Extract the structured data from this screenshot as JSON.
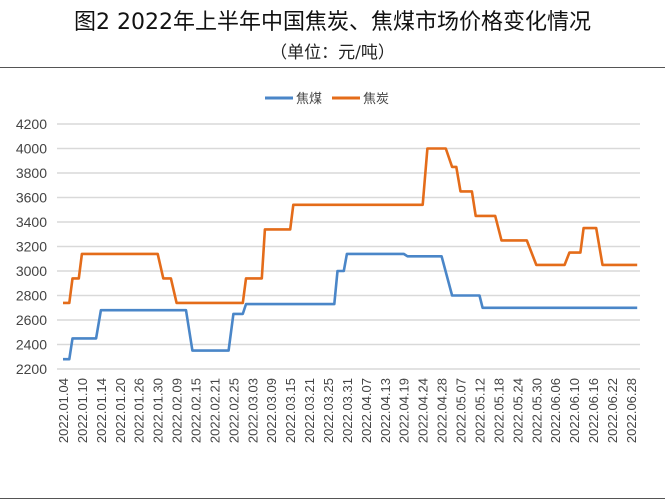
{
  "title": "图2 2022年上半年中国焦炭、焦煤市场价格变化情况",
  "subtitle": "（单位：元/吨）",
  "chart_data": {
    "type": "line",
    "title": "图2 2022年上半年中国焦炭、焦煤市场价格变化情况",
    "subtitle": "（单位：元/吨）",
    "xlabel": "",
    "ylabel": "",
    "ylim": [
      2200,
      4200
    ],
    "yticks": [
      2200,
      2400,
      2600,
      2800,
      3000,
      3200,
      3400,
      3600,
      3800,
      4000,
      4200
    ],
    "grid": true,
    "legend_position": "top-center",
    "xtick_labels": [
      "2022.01.04",
      "2022.01.10",
      "2022.01.14",
      "2022.01.20",
      "2022.01.26",
      "2022.01.30",
      "2022.02.09",
      "2022.02.15",
      "2022.02.21",
      "2022.02.25",
      "2022.03.03",
      "2022.03.09",
      "2022.03.15",
      "2022.03.21",
      "2022.03.25",
      "2022.03.31",
      "2022.04.07",
      "2022.04.13",
      "2022.04.19",
      "2022.04.24",
      "2022.04.28",
      "2022.05.07",
      "2022.05.12",
      "2022.05.18",
      "2022.05.24",
      "2022.05.30",
      "2022.06.06",
      "2022.06.10",
      "2022.06.16",
      "2022.06.22",
      "2022.06.28"
    ],
    "series": [
      {
        "name": "焦煤",
        "color": "#4a86c8",
        "points": [
          [
            "2022-01-04",
            2280
          ],
          [
            "2022-01-06",
            2280
          ],
          [
            "2022-01-07",
            2450
          ],
          [
            "2022-01-13",
            2450
          ],
          [
            "2022-01-14",
            2680
          ],
          [
            "2022-02-12",
            2680
          ],
          [
            "2022-02-14",
            2350
          ],
          [
            "2022-02-24",
            2350
          ],
          [
            "2022-02-25",
            2650
          ],
          [
            "2022-02-28",
            2650
          ],
          [
            "2022-03-01",
            2730
          ],
          [
            "2022-03-27",
            2730
          ],
          [
            "2022-03-28",
            3000
          ],
          [
            "2022-03-30",
            3000
          ],
          [
            "2022-03-31",
            3140
          ],
          [
            "2022-04-19",
            3140
          ],
          [
            "2022-04-20",
            3120
          ],
          [
            "2022-04-28",
            3120
          ],
          [
            "2022-05-03",
            2800
          ],
          [
            "2022-05-12",
            2800
          ],
          [
            "2022-05-13",
            2700
          ],
          [
            "2022-06-30",
            2700
          ]
        ]
      },
      {
        "name": "焦炭",
        "color": "#e46c1a",
        "points": [
          [
            "2022-01-04",
            2740
          ],
          [
            "2022-01-06",
            2740
          ],
          [
            "2022-01-07",
            2940
          ],
          [
            "2022-01-09",
            2940
          ],
          [
            "2022-01-10",
            3140
          ],
          [
            "2022-01-30",
            3140
          ],
          [
            "2022-02-02",
            2940
          ],
          [
            "2022-02-06",
            2940
          ],
          [
            "2022-02-09",
            2740
          ],
          [
            "2022-02-28",
            2740
          ],
          [
            "2022-03-01",
            2940
          ],
          [
            "2022-03-06",
            2940
          ],
          [
            "2022-03-07",
            3340
          ],
          [
            "2022-03-15",
            3340
          ],
          [
            "2022-03-16",
            3540
          ],
          [
            "2022-04-24",
            3540
          ],
          [
            "2022-04-25",
            4000
          ],
          [
            "2022-04-30",
            4000
          ],
          [
            "2022-05-03",
            3850
          ],
          [
            "2022-05-05",
            3850
          ],
          [
            "2022-05-07",
            3650
          ],
          [
            "2022-05-10",
            3650
          ],
          [
            "2022-05-11",
            3450
          ],
          [
            "2022-05-17",
            3450
          ],
          [
            "2022-05-19",
            3250
          ],
          [
            "2022-05-27",
            3250
          ],
          [
            "2022-05-30",
            3050
          ],
          [
            "2022-06-08",
            3050
          ],
          [
            "2022-06-09",
            3150
          ],
          [
            "2022-06-12",
            3150
          ],
          [
            "2022-06-13",
            3350
          ],
          [
            "2022-06-17",
            3350
          ],
          [
            "2022-06-19",
            3050
          ],
          [
            "2022-06-30",
            3050
          ]
        ]
      }
    ]
  }
}
